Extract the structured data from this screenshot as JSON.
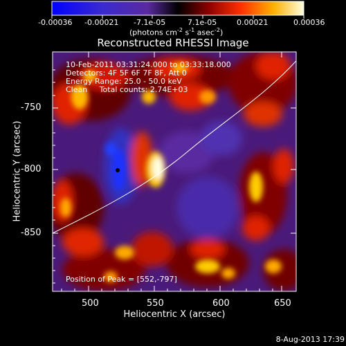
{
  "colorbar": {
    "tick_labels": [
      "-0.00036",
      "-0.00021",
      "-7.1e-05",
      "7.1e-05",
      "0.00021",
      "0.00036"
    ],
    "units_prefix": "(photons cm",
    "units_exp1": "-2",
    "units_mid": " s",
    "units_exp2": "-1",
    "units_mid2": " asec",
    "units_exp3": "-2",
    "units_suffix": ")",
    "range": [
      -0.00036,
      0.00036
    ]
  },
  "title": "Reconstructed RHESSI Image",
  "overlay": {
    "line1": "10-Feb-2011 03:31:24.000 to 03:33:18.000",
    "line2": "Detectors: 4F 5F 6F 7F 8F, Att 0",
    "line3": "Energy Range: 25.0 - 50.0 keV",
    "line4": "Clean     Total counts: 2.74E+03",
    "peak": "Position of Peak = [552,-797]"
  },
  "axes": {
    "xlabel": "Heliocentric X (arcsec)",
    "ylabel": "Heliocentric Y (arcsec)",
    "xticks": [
      "500",
      "550",
      "600",
      "650"
    ],
    "yticks": [
      "-750",
      "-800",
      "-850"
    ]
  },
  "footer": {
    "date": "8-Aug-2013 17:39"
  },
  "colors": {
    "background": "#000000",
    "limb": "#ffffff"
  }
}
